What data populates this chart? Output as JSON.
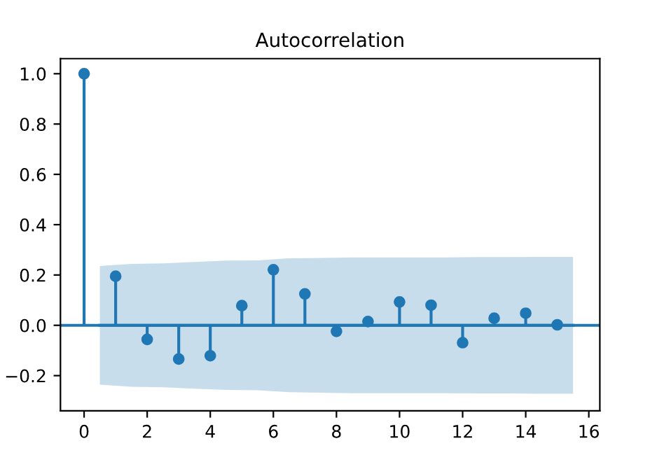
{
  "chart_data": {
    "type": "lollipop",
    "title": "Autocorrelation",
    "x": [
      0,
      1,
      2,
      3,
      4,
      5,
      6,
      7,
      8,
      9,
      10,
      11,
      12,
      13,
      14,
      15
    ],
    "series": [
      {
        "color": "#1f77b4",
        "marker": "circle",
        "values": [
          1.0,
          0.195,
          -0.056,
          -0.134,
          -0.121,
          0.078,
          0.221,
          0.125,
          -0.024,
          0.015,
          0.093,
          0.08,
          -0.069,
          0.028,
          0.048,
          0.002
        ]
      },
      {
        "type": "line",
        "color": "#1f77b4",
        "values": [
          0,
          0,
          0,
          0,
          0,
          0,
          0,
          0,
          0,
          0,
          0,
          0,
          0,
          0,
          0,
          0
        ],
        "x": [
          0.5,
          1.5,
          2.5,
          3.5,
          4.5,
          5.5,
          6.5,
          7.5,
          8.5,
          9.5,
          10.5,
          11.5,
          12.5,
          13.5,
          14.5,
          15.5
        ],
        "lower": [
          -0.236,
          -0.244,
          -0.246,
          -0.252,
          -0.257,
          -0.258,
          -0.266,
          -0.268,
          -0.27,
          -0.27,
          -0.27,
          -0.27,
          -0.271,
          -0.271,
          -0.272,
          -0.272
        ],
        "upper": [
          0.236,
          0.244,
          0.246,
          0.252,
          0.257,
          0.258,
          0.266,
          0.268,
          0.27,
          0.27,
          0.27,
          0.27,
          0.271,
          0.271,
          0.272,
          0.272
        ]
      }
    ],
    "ref_lines": [
      {
        "axis": "y",
        "value": 0,
        "color": "#1f77b4",
        "line_style": "solid"
      }
    ],
    "xlim": [
      -0.75,
      16.35
    ],
    "xticks": [
      0,
      2,
      4,
      6,
      8,
      10,
      12,
      14,
      16
    ],
    "ylim": [
      -0.34,
      1.06
    ],
    "yticks": [
      {
        "value": -0.2,
        "label": "−0.2"
      },
      {
        "value": 0,
        "label": "0.0"
      },
      0.2,
      0.4,
      0.6,
      0.8,
      {
        "value": 1,
        "label": "1.0"
      }
    ],
    "grid": false,
    "legend": false
  }
}
